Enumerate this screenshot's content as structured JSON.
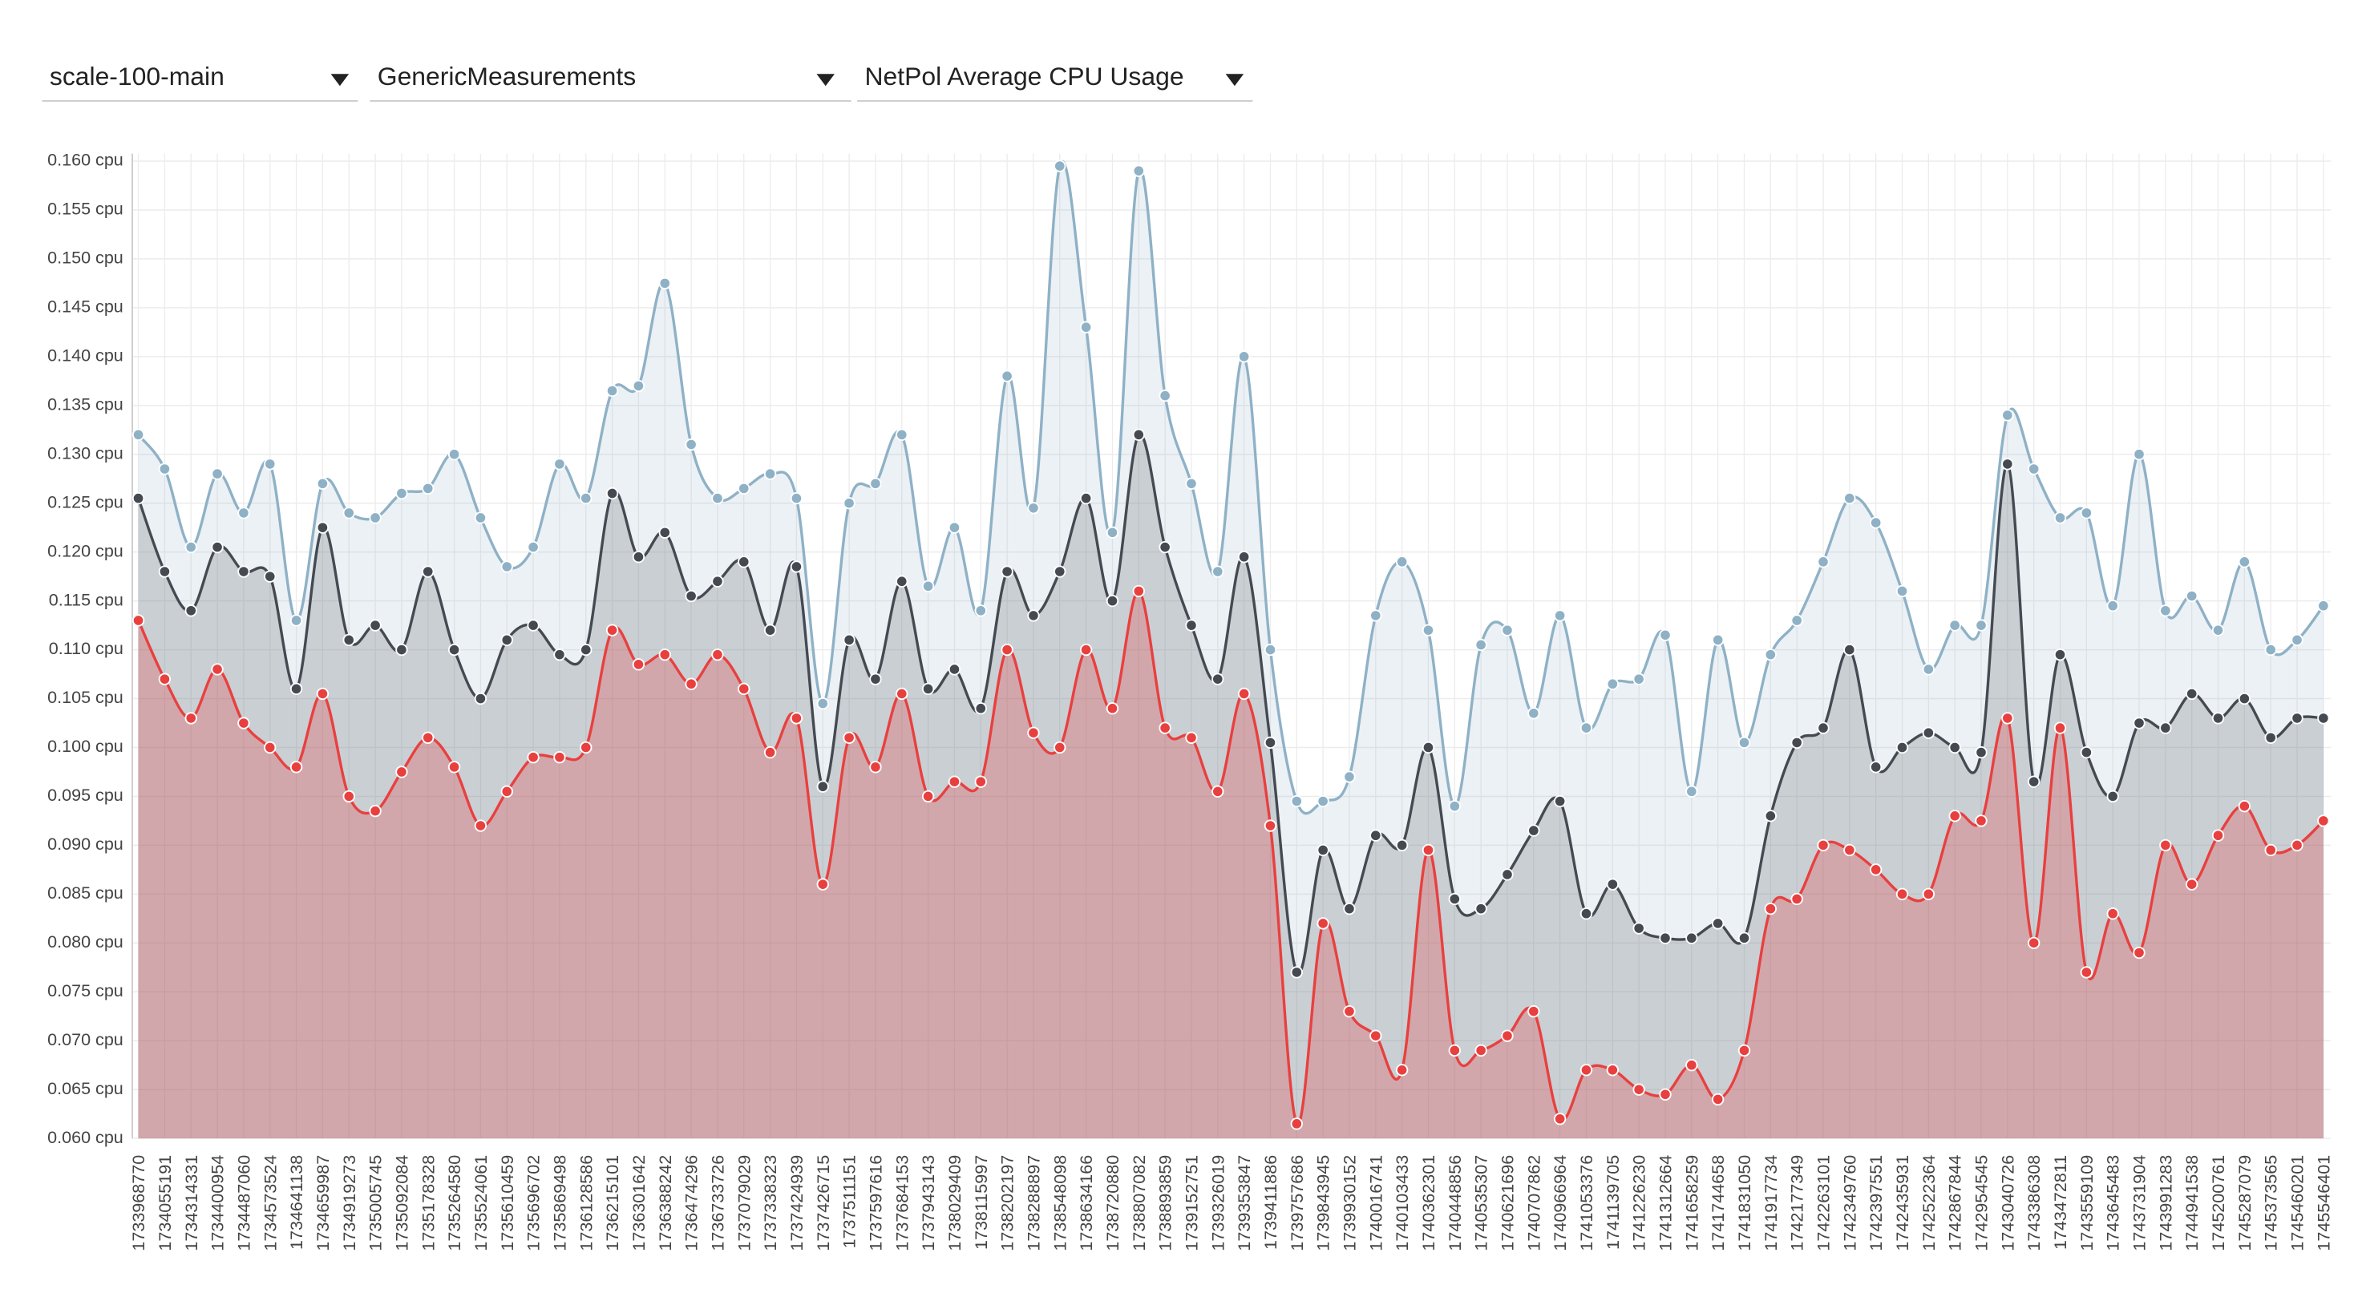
{
  "dropdowns": [
    "scale-100-main",
    "GenericMeasurements",
    "NetPol Average CPU Usage"
  ],
  "chart_data": {
    "type": "area",
    "categories": [
      "1733968770",
      "1734055191",
      "1734314331",
      "1734400954",
      "1734487060",
      "1734573524",
      "1734641138",
      "1734659987",
      "1734919273",
      "1735005745",
      "1735092084",
      "1735178328",
      "1735264580",
      "1735524061",
      "1735610459",
      "1735696702",
      "1735869498",
      "1736128586",
      "1736215101",
      "1736301642",
      "1736388242",
      "1736474296",
      "1736733726",
      "1737079029",
      "1737338323",
      "1737424939",
      "1737426715",
      "1737511151",
      "1737597616",
      "1737684153",
      "1737943143",
      "1738029409",
      "1738115997",
      "1738202197",
      "1738288897",
      "1738548098",
      "1738634166",
      "1738720880",
      "1738807082",
      "1738893859",
      "1739152751",
      "1739326019",
      "1739353847",
      "1739411886",
      "1739757686",
      "1739843945",
      "1739930152",
      "1740016741",
      "1740103433",
      "1740362301",
      "1740448856",
      "1740535307",
      "1740621696",
      "1740707862",
      "1740966964",
      "1741053376",
      "1741139705",
      "1741226230",
      "1741312664",
      "1741658259",
      "1741744658",
      "1741831050",
      "1741917734",
      "1742177349",
      "1742263101",
      "1742349760",
      "1742397551",
      "1742435931",
      "1742522364",
      "1742867844",
      "1742954545",
      "1743040726",
      "1743386308",
      "1743472811",
      "1743559109",
      "1743645483",
      "1743731904",
      "1743991283",
      "1744941538",
      "1745200761",
      "1745287079",
      "1745373565",
      "1745460201",
      "1745546401"
    ],
    "series": [
      {
        "color": "#8fb1c6",
        "values": [
          0.132,
          0.1285,
          0.1205,
          0.128,
          0.124,
          0.129,
          0.113,
          0.127,
          0.124,
          0.1235,
          0.126,
          0.1265,
          0.13,
          0.1235,
          0.1185,
          0.1205,
          0.129,
          0.1255,
          0.1365,
          0.137,
          0.1475,
          0.131,
          0.1255,
          0.1265,
          0.128,
          0.1255,
          0.1045,
          0.125,
          0.127,
          0.132,
          0.1165,
          0.1225,
          0.114,
          0.138,
          0.1245,
          0.1595,
          0.143,
          0.122,
          0.159,
          0.136,
          0.127,
          0.118,
          0.14,
          0.11,
          0.0945,
          0.0945,
          0.097,
          0.1135,
          0.119,
          0.112,
          0.094,
          0.1105,
          0.112,
          0.1035,
          0.1135,
          0.102,
          0.1065,
          0.107,
          0.1115,
          0.0955,
          0.111,
          0.1005,
          0.1095,
          0.113,
          0.119,
          0.1255,
          0.123,
          0.116,
          0.108,
          0.1125,
          0.1125,
          0.134,
          0.1285,
          0.1235,
          0.124,
          0.1145,
          0.13,
          0.114,
          0.1155,
          0.112,
          0.119,
          0.11,
          0.111,
          0.1145
        ]
      },
      {
        "color": "#454a52",
        "values": [
          0.1255,
          0.118,
          0.114,
          0.1205,
          0.118,
          0.1175,
          0.106,
          0.1225,
          0.111,
          0.1125,
          0.11,
          0.118,
          0.11,
          0.105,
          0.111,
          0.1125,
          0.1095,
          0.11,
          0.126,
          0.1195,
          0.122,
          0.1155,
          0.117,
          0.119,
          0.112,
          0.1185,
          0.096,
          0.111,
          0.107,
          0.117,
          0.106,
          0.108,
          0.104,
          0.118,
          0.1135,
          0.118,
          0.1255,
          0.115,
          0.132,
          0.1205,
          0.1125,
          0.107,
          0.1195,
          0.1005,
          0.077,
          0.0895,
          0.0835,
          0.091,
          0.09,
          0.1,
          0.0845,
          0.0835,
          0.087,
          0.0915,
          0.0945,
          0.083,
          0.086,
          0.0815,
          0.0805,
          0.0805,
          0.082,
          0.0805,
          0.093,
          0.1005,
          0.102,
          0.11,
          0.098,
          0.1,
          0.1015,
          0.1,
          0.0995,
          0.129,
          0.0965,
          0.1095,
          0.0995,
          0.095,
          0.1025,
          0.102,
          0.1055,
          0.103,
          0.105,
          0.101,
          0.103,
          0.103
        ]
      },
      {
        "color": "#e8403f",
        "values": [
          0.113,
          0.107,
          0.103,
          0.108,
          0.1025,
          0.1,
          0.098,
          0.1055,
          0.095,
          0.0935,
          0.0975,
          0.101,
          0.098,
          0.092,
          0.0955,
          0.099,
          0.099,
          0.1,
          0.112,
          0.1085,
          0.1095,
          0.1065,
          0.1095,
          0.106,
          0.0995,
          0.103,
          0.086,
          0.101,
          0.098,
          0.1055,
          0.095,
          0.0965,
          0.0965,
          0.11,
          0.1015,
          0.1,
          0.11,
          0.104,
          0.116,
          0.102,
          0.101,
          0.0955,
          0.1055,
          0.092,
          0.0615,
          0.082,
          0.073,
          0.0705,
          0.067,
          0.0895,
          0.069,
          0.069,
          0.0705,
          0.073,
          0.062,
          0.067,
          0.067,
          0.065,
          0.0645,
          0.0675,
          0.064,
          0.069,
          0.0835,
          0.0845,
          0.09,
          0.0895,
          0.0875,
          0.085,
          0.085,
          0.093,
          0.0925,
          0.103,
          0.08,
          0.102,
          0.077,
          0.083,
          0.079,
          0.09,
          0.086,
          0.091,
          0.094,
          0.0895,
          0.09,
          0.0925
        ]
      }
    ],
    "ylim": [
      0.06,
      0.16
    ],
    "yticks": [
      {
        "value": 0.06,
        "label": "0.060 cpu"
      },
      {
        "value": 0.065,
        "label": "0.065 cpu"
      },
      {
        "value": 0.07,
        "label": "0.070 cpu"
      },
      {
        "value": 0.075,
        "label": "0.075 cpu"
      },
      {
        "value": 0.08,
        "label": "0.080 cpu"
      },
      {
        "value": 0.085,
        "label": "0.085 cpu"
      },
      {
        "value": 0.09,
        "label": "0.090 cpu"
      },
      {
        "value": 0.095,
        "label": "0.095 cpu"
      },
      {
        "value": 0.1,
        "label": "0.100 cpu"
      },
      {
        "value": 0.105,
        "label": "0.105 cpu"
      },
      {
        "value": 0.11,
        "label": "0.110 cpu"
      },
      {
        "value": 0.115,
        "label": "0.115 cpu"
      },
      {
        "value": 0.12,
        "label": "0.120 cpu"
      },
      {
        "value": 0.125,
        "label": "0.125 cpu"
      },
      {
        "value": 0.13,
        "label": "0.130 cpu"
      },
      {
        "value": 0.135,
        "label": "0.135 cpu"
      },
      {
        "value": 0.14,
        "label": "0.140 cpu"
      },
      {
        "value": 0.145,
        "label": "0.145 cpu"
      },
      {
        "value": 0.15,
        "label": "0.150 cpu"
      },
      {
        "value": 0.155,
        "label": "0.155 cpu"
      },
      {
        "value": 0.16,
        "label": "0.160 cpu"
      }
    ],
    "grid": true
  }
}
